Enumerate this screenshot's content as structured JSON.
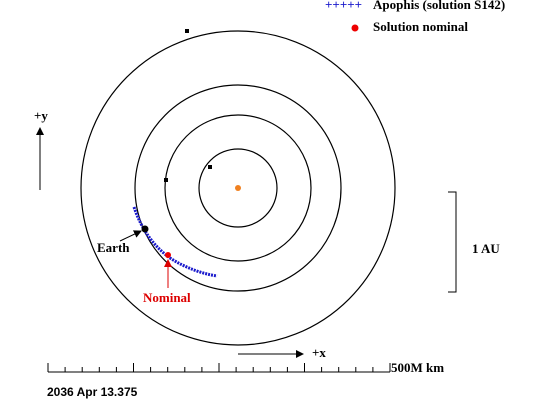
{
  "legend": [
    {
      "symbol": "+++++",
      "label": "Apophis (solution S142)"
    },
    {
      "label": "Solution nominal"
    }
  ],
  "axes": {
    "y_label": "+y",
    "x_label": "+x"
  },
  "labels": {
    "earth": "Earth",
    "nominal": "Nominal"
  },
  "scale": {
    "au": "1 AU",
    "distance": "500M km"
  },
  "date": "2036 Apr 13.375"
}
